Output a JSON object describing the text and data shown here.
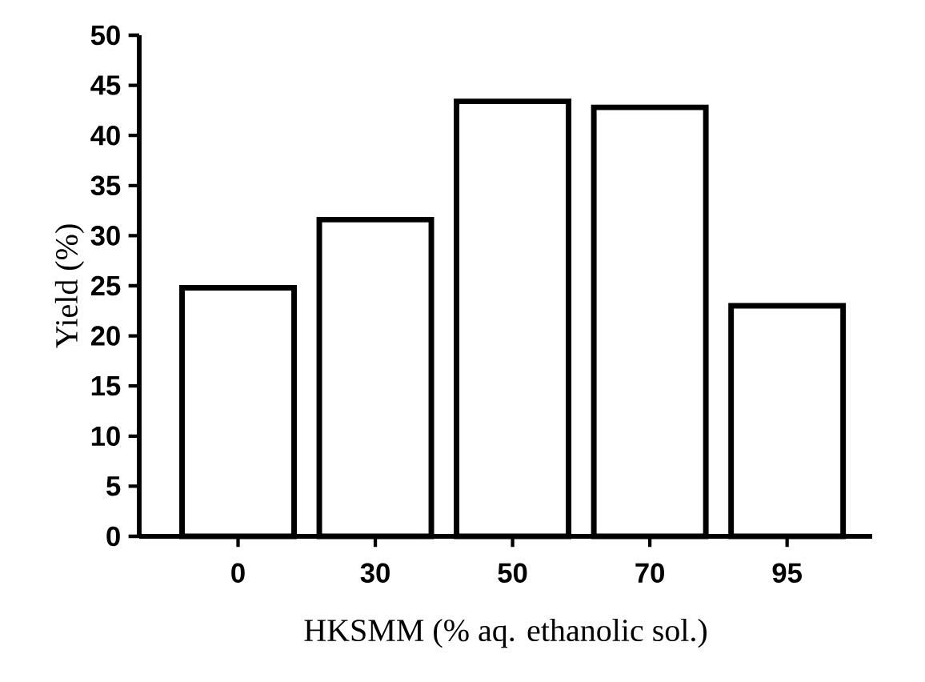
{
  "chart_data": {
    "type": "bar",
    "xlabel": "HKSMM (% aq. ethanolic sol.)",
    "ylabel": "Yield (%)",
    "categories": [
      "0",
      "30",
      "50",
      "70",
      "95"
    ],
    "values": [
      24.8,
      31.6,
      43.4,
      42.8,
      23.0
    ],
    "color": "#ffffff",
    "ylim": [
      0,
      50
    ],
    "yticks": [
      0,
      5,
      10,
      15,
      20,
      25,
      30,
      35,
      40,
      45,
      50
    ],
    "grid": false
  }
}
